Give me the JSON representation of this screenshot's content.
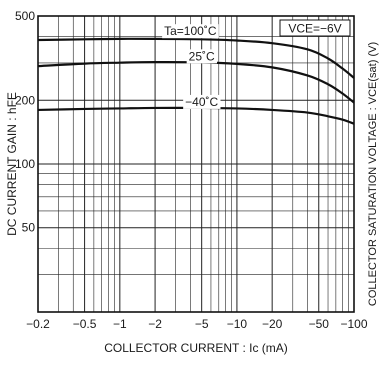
{
  "chart_data": {
    "type": "line",
    "xlabel": "COLLECTOR CURRENT : Ic (mA)",
    "ylabel": "DC CURRENT GAIN : hFE",
    "y2label": "COLLECTOR SATURATION VOLTAGE : VCE(sat) (V)",
    "condition_label": "VCE=−6V",
    "x_scale": "log",
    "y_scale": "log",
    "xlim": [
      -0.2,
      -100
    ],
    "ylim": [
      20,
      500
    ],
    "x_ticks": [
      {
        "value": -0.2,
        "label": "−0.2"
      },
      {
        "value": -0.5,
        "label": "−0.5"
      },
      {
        "value": -1,
        "label": "−1"
      },
      {
        "value": -2,
        "label": "−2"
      },
      {
        "value": -5,
        "label": "−5"
      },
      {
        "value": -10,
        "label": "−10"
      },
      {
        "value": -20,
        "label": "−20"
      },
      {
        "value": -50,
        "label": "−50"
      },
      {
        "value": -100,
        "label": "−100"
      }
    ],
    "y_ticks": [
      {
        "value": 500,
        "label": "500"
      },
      {
        "value": 200,
        "label": "200"
      },
      {
        "value": 100,
        "label": "100"
      },
      {
        "value": 50,
        "label": "50"
      }
    ],
    "grid": true,
    "series": [
      {
        "name": "Ta=100˚C",
        "x": [
          -0.2,
          -0.5,
          -1,
          -2,
          -5,
          -10,
          -20,
          -40,
          -60,
          -80,
          -100
        ],
        "y": [
          385,
          388,
          390,
          390,
          388,
          383,
          372,
          348,
          315,
          282,
          255
        ]
      },
      {
        "name": "25˚C",
        "x": [
          -0.2,
          -0.5,
          -1,
          -2,
          -5,
          -10,
          -20,
          -40,
          -60,
          -80,
          -100
        ],
        "y": [
          290,
          298,
          301,
          303,
          302,
          297,
          286,
          262,
          238,
          215,
          195
        ]
      },
      {
        "name": "−40˚C",
        "x": [
          -0.2,
          -0.5,
          -1,
          -2,
          -5,
          -10,
          -20,
          -40,
          -60,
          -80,
          -100
        ],
        "y": [
          180,
          182,
          183,
          184,
          184,
          183,
          180,
          175,
          168,
          162,
          155
        ]
      }
    ]
  }
}
